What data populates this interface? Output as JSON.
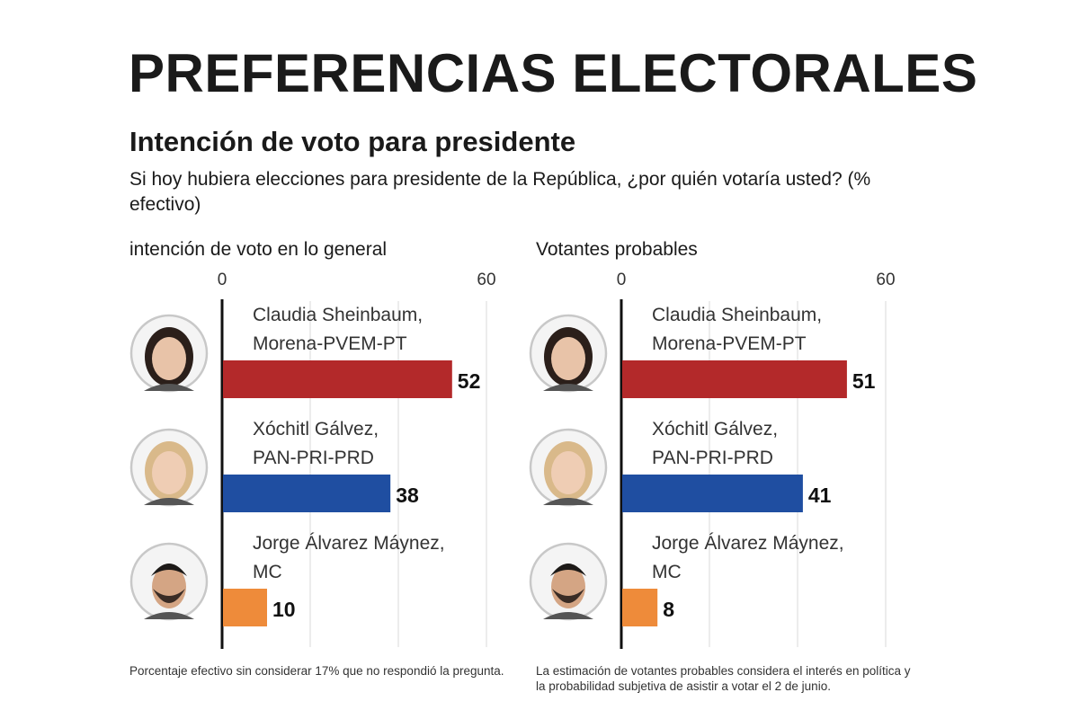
{
  "title": "PREFERENCIAS ELECTORALES",
  "subtitle": "Intención de voto para presidente",
  "question": "Si hoy hubiera elecciones para presidente de la República, ¿por quién votaría usted? (% efectivo)",
  "colors": {
    "morena": "#b3292a",
    "pan": "#1f4ea1",
    "mc": "#ee8b3a",
    "grid": "#d8d8d8",
    "axis": "#111111"
  },
  "chart_data": [
    {
      "type": "bar",
      "orientation": "horizontal",
      "title": "intención de voto en lo general",
      "xlim": [
        0,
        60
      ],
      "ticks": [
        0,
        60
      ],
      "gridlines": [
        0,
        20,
        40,
        60
      ],
      "categories": [
        [
          "Claudia Sheinbaum,",
          "Morena-PVEM-PT"
        ],
        [
          "Xóchitl Gálvez,",
          "PAN-PRI-PRD"
        ],
        [
          "Jorge Álvarez Máynez,",
          "MC"
        ]
      ],
      "values": [
        52,
        38,
        10
      ],
      "bar_colors": [
        "#b3292a",
        "#1f4ea1",
        "#ee8b3a"
      ],
      "note": "Porcentaje efectivo sin considerar 17% que no respondió la pregunta."
    },
    {
      "type": "bar",
      "orientation": "horizontal",
      "title": "Votantes probables",
      "xlim": [
        0,
        60
      ],
      "ticks": [
        0,
        60
      ],
      "gridlines": [
        0,
        20,
        40,
        60
      ],
      "categories": [
        [
          "Claudia Sheinbaum,",
          "Morena-PVEM-PT"
        ],
        [
          "Xóchitl Gálvez,",
          "PAN-PRI-PRD"
        ],
        [
          "Jorge Álvarez Máynez,",
          "MC"
        ]
      ],
      "values": [
        51,
        41,
        8
      ],
      "bar_colors": [
        "#b3292a",
        "#1f4ea1",
        "#ee8b3a"
      ],
      "note": "La estimación de votantes probables considera el interés en política y la probabilidad subjetiva de asistir a votar el 2 de junio."
    }
  ]
}
